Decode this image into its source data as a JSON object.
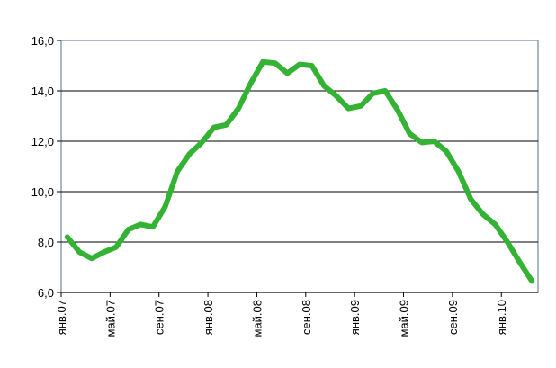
{
  "chart_data": {
    "type": "line",
    "categories": [
      "янв.07",
      null,
      null,
      null,
      "май.07",
      null,
      null,
      null,
      "сен.07",
      null,
      null,
      null,
      "янв.08",
      null,
      null,
      null,
      "май.08",
      null,
      null,
      null,
      "сен.08",
      null,
      null,
      null,
      "янв.09",
      null,
      null,
      null,
      "май.09",
      null,
      null,
      null,
      "сен.09",
      null,
      null,
      null,
      "янв.10",
      null,
      null
    ],
    "series": [
      {
        "color": "#33b233",
        "values": [
          8.2,
          7.6,
          7.35,
          7.6,
          7.8,
          8.5,
          8.7,
          8.6,
          9.4,
          10.8,
          11.5,
          11.95,
          12.55,
          12.65,
          13.3,
          14.3,
          15.15,
          15.1,
          14.7,
          15.05,
          15.0,
          14.2,
          13.8,
          13.3,
          13.4,
          13.9,
          14.0,
          13.25,
          12.3,
          11.95,
          12.0,
          11.6,
          10.8,
          9.7,
          9.1,
          8.7,
          8.0,
          7.2,
          6.45
        ]
      }
    ],
    "ylim": [
      6,
      16
    ],
    "yticks": [
      {
        "value": 6,
        "label": "6,0"
      },
      {
        "value": 8,
        "label": "8,0"
      },
      {
        "value": 10,
        "label": "10,0"
      },
      {
        "value": 12,
        "label": "12,0"
      },
      {
        "value": 14,
        "label": "14,0"
      },
      {
        "value": 16,
        "label": "16,0"
      }
    ],
    "grid": true
  }
}
